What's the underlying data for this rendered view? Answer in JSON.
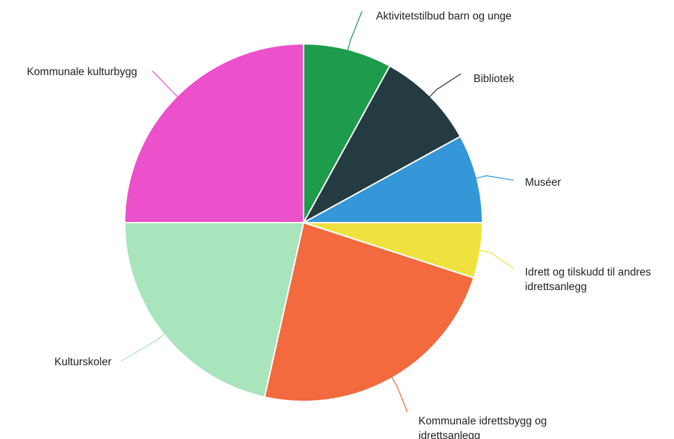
{
  "chart_data": {
    "type": "pie",
    "start_angle_deg": 0,
    "direction": "clockwise",
    "slices": [
      {
        "label": "Aktivitetstilbud barn og unge",
        "value": 8,
        "color": "#1e9b4b"
      },
      {
        "label": "Bibliotek",
        "value": 9,
        "color": "#243b42"
      },
      {
        "label": "Muséer",
        "value": 8,
        "color": "#3596d8"
      },
      {
        "label": "Idrett og tilskudd til andres idrettsanlegg",
        "value": 5,
        "color": "#efe23f"
      },
      {
        "label": "Kommunale idrettsbygg og idrettsanlegg",
        "value": 23.5,
        "color": "#f26a3d"
      },
      {
        "label": "Kulturskoler",
        "value": 21.5,
        "color": "#a8e4bc"
      },
      {
        "label": "Kommunale kulturbygg",
        "value": 25,
        "color": "#ec50cb"
      }
    ]
  }
}
